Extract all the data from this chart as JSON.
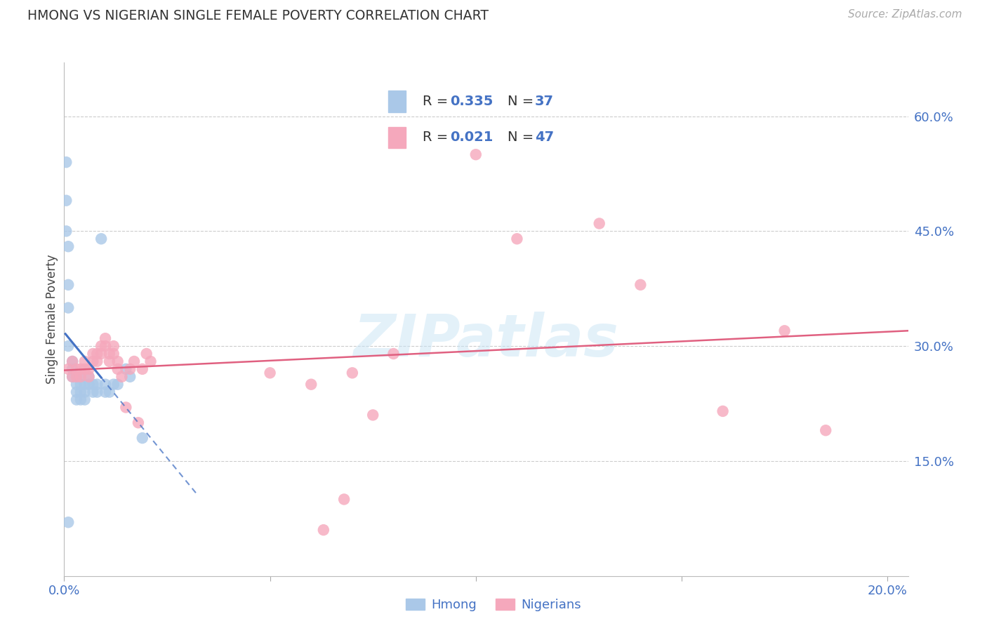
{
  "title": "HMONG VS NIGERIAN SINGLE FEMALE POVERTY CORRELATION CHART",
  "source": "Source: ZipAtlas.com",
  "ylabel": "Single Female Poverty",
  "legend_label1": "Hmong",
  "legend_label2": "Nigerians",
  "R_hmong": 0.335,
  "N_hmong": 37,
  "R_nigerian": 0.021,
  "N_nigerian": 47,
  "color_hmong": "#aac8e8",
  "color_nigerian": "#f5a8bc",
  "color_line_hmong": "#4472c4",
  "color_line_nigerian": "#e06080",
  "color_labels_blue": "#4472c4",
  "color_text_dark": "#333333",
  "background": "#ffffff",
  "xlim": [
    0.0,
    0.205
  ],
  "ylim": [
    0.0,
    0.67
  ],
  "y_ticks_right": [
    0.15,
    0.3,
    0.45,
    0.6
  ],
  "y_tick_labels_right": [
    "15.0%",
    "30.0%",
    "45.0%",
    "60.0%"
  ],
  "hmong_x": [
    0.0005,
    0.0005,
    0.0005,
    0.001,
    0.001,
    0.001,
    0.001,
    0.002,
    0.002,
    0.002,
    0.003,
    0.003,
    0.003,
    0.003,
    0.004,
    0.004,
    0.004,
    0.004,
    0.005,
    0.005,
    0.005,
    0.006,
    0.006,
    0.007,
    0.007,
    0.008,
    0.008,
    0.009,
    0.01,
    0.01,
    0.011,
    0.012,
    0.013,
    0.015,
    0.016,
    0.019,
    0.001
  ],
  "hmong_y": [
    0.54,
    0.49,
    0.45,
    0.43,
    0.38,
    0.35,
    0.3,
    0.28,
    0.27,
    0.26,
    0.26,
    0.25,
    0.24,
    0.23,
    0.26,
    0.25,
    0.24,
    0.23,
    0.25,
    0.24,
    0.23,
    0.26,
    0.25,
    0.25,
    0.24,
    0.25,
    0.24,
    0.44,
    0.25,
    0.24,
    0.24,
    0.25,
    0.25,
    0.27,
    0.26,
    0.18,
    0.07
  ],
  "nigerian_x": [
    0.001,
    0.002,
    0.002,
    0.003,
    0.003,
    0.004,
    0.004,
    0.005,
    0.005,
    0.006,
    0.006,
    0.007,
    0.007,
    0.008,
    0.008,
    0.009,
    0.009,
    0.01,
    0.01,
    0.011,
    0.011,
    0.012,
    0.012,
    0.013,
    0.013,
    0.014,
    0.015,
    0.016,
    0.017,
    0.018,
    0.019,
    0.02,
    0.021,
    0.05,
    0.06,
    0.07,
    0.1,
    0.11,
    0.13,
    0.14,
    0.16,
    0.175,
    0.185,
    0.063,
    0.068,
    0.08,
    0.075
  ],
  "nigerian_y": [
    0.27,
    0.28,
    0.26,
    0.27,
    0.26,
    0.27,
    0.26,
    0.28,
    0.27,
    0.27,
    0.26,
    0.29,
    0.28,
    0.29,
    0.28,
    0.3,
    0.29,
    0.31,
    0.3,
    0.29,
    0.28,
    0.3,
    0.29,
    0.28,
    0.27,
    0.26,
    0.22,
    0.27,
    0.28,
    0.2,
    0.27,
    0.29,
    0.28,
    0.265,
    0.25,
    0.265,
    0.55,
    0.44,
    0.46,
    0.38,
    0.215,
    0.32,
    0.19,
    0.06,
    0.1,
    0.29,
    0.21
  ]
}
